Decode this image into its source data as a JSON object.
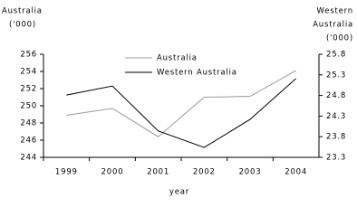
{
  "chart_data": {
    "type": "line",
    "y_label": [
      "Australia",
      "('000)"
    ],
    "y2_label": [
      "Western",
      "Australia",
      "('000)"
    ],
    "x_label": "year",
    "categories": [
      "1999",
      "2000",
      "2001",
      "2002",
      "2003",
      "2004"
    ],
    "series": [
      {
        "name": "Australia",
        "color": "#999999",
        "values": [
          248.9,
          249.7,
          246.4,
          251.0,
          251.1,
          254.1
        ]
      },
      {
        "name": "Western Australia",
        "color": "#000000",
        "axis": "y2",
        "values": [
          24.81,
          25.03,
          23.94,
          23.54,
          24.22,
          25.21
        ]
      }
    ],
    "ylim": [
      244,
      256
    ],
    "yticks": [
      244,
      246,
      248,
      250,
      252,
      254,
      256
    ],
    "y2lim": [
      23.3,
      25.8
    ],
    "y2ticks": [
      23.3,
      23.8,
      24.3,
      24.8,
      25.3,
      25.8
    ],
    "grid": false
  }
}
